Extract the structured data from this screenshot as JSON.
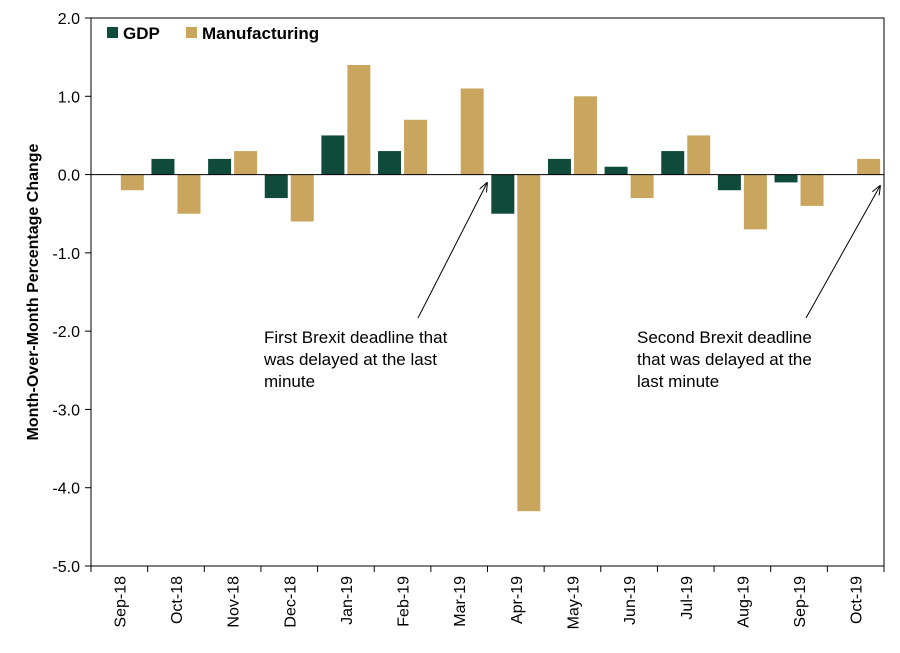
{
  "chart_data": {
    "type": "bar",
    "ylabel": "Month-Over-Month Percentage Change",
    "ylim": [
      -5.0,
      2.0
    ],
    "yticks": [
      "2.0",
      "1.0",
      "0.0",
      "-1.0",
      "-2.0",
      "-3.0",
      "-4.0",
      "-5.0"
    ],
    "ytick_values": [
      2,
      1,
      0,
      -1,
      -2,
      -3,
      -4,
      -5
    ],
    "categories": [
      "Sep-18",
      "Oct-18",
      "Nov-18",
      "Dec-18",
      "Jan-19",
      "Feb-19",
      "Mar-19",
      "Apr-19",
      "May-19",
      "Jun-19",
      "Jul-19",
      "Aug-19",
      "Sep-19",
      "Oct-19"
    ],
    "legend_position": "top-left",
    "grid": false,
    "series": [
      {
        "name": "GDP",
        "color": "#0f4a3a",
        "values": [
          0.0,
          0.2,
          0.2,
          -0.3,
          0.5,
          0.3,
          0.0,
          -0.5,
          0.2,
          0.1,
          0.3,
          -0.2,
          -0.1,
          null
        ]
      },
      {
        "name": "Manufacturing",
        "color": "#c9a55d",
        "values": [
          -0.2,
          -0.5,
          0.3,
          -0.6,
          1.4,
          0.7,
          1.1,
          -4.3,
          1.0,
          -0.3,
          0.5,
          -0.7,
          -0.4,
          0.2
        ]
      }
    ],
    "annotations": [
      {
        "lines": [
          "First Brexit deadline that",
          "was delayed at the last",
          "minute"
        ],
        "points_to": "Mar-19"
      },
      {
        "lines": [
          "Second Brexit deadline",
          "that was delayed at the",
          "last minute"
        ],
        "points_to": "Oct-19"
      }
    ]
  }
}
